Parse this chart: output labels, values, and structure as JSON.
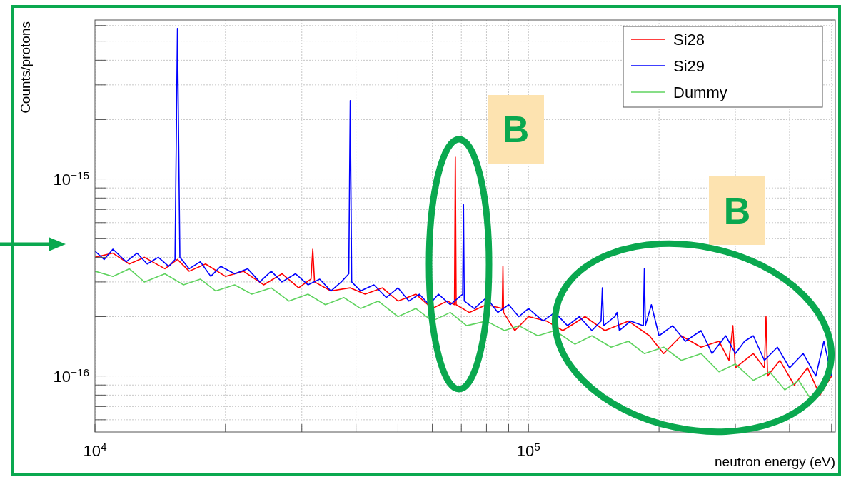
{
  "chart_data": {
    "type": "line",
    "xlabel": "neutron energy (eV)",
    "ylabel": "Counts/protons",
    "log": "xy",
    "grid": true,
    "legend": "top right",
    "xlim": [
      10000,
      510000
    ],
    "ylim": [
      5.2e-17,
      6.4e-15
    ],
    "xticks": [
      {
        "value": 10000,
        "label": "10$^{4}$"
      },
      {
        "value": 20000,
        "label": null
      },
      {
        "value": 30000,
        "label": null
      },
      {
        "value": 40000,
        "label": null
      },
      {
        "value": 50000,
        "label": null
      },
      {
        "value": 60000,
        "label": null
      },
      {
        "value": 70000,
        "label": null
      },
      {
        "value": 80000,
        "label": null
      },
      {
        "value": 90000,
        "label": null
      },
      {
        "value": 100000,
        "label": "10$^{5}$"
      },
      {
        "value": 200000,
        "label": null
      },
      {
        "value": 300000,
        "label": null
      },
      {
        "value": 400000,
        "label": null
      },
      {
        "value": 500000,
        "label": null
      }
    ],
    "yticks": [
      {
        "value": 6e-17,
        "label": null
      },
      {
        "value": 7e-17,
        "label": null
      },
      {
        "value": 8e-17,
        "label": null
      },
      {
        "value": 9e-17,
        "label": null
      },
      {
        "value": 1e-16,
        "label": "10$^{−16}$"
      },
      {
        "value": 2e-16,
        "label": null
      },
      {
        "value": 3e-16,
        "label": null
      },
      {
        "value": 4e-16,
        "label": null
      },
      {
        "value": 5e-16,
        "label": null
      },
      {
        "value": 6e-16,
        "label": null
      },
      {
        "value": 7e-16,
        "label": null
      },
      {
        "value": 8e-16,
        "label": null
      },
      {
        "value": 9e-16,
        "label": null
      },
      {
        "value": 1e-15,
        "label": "10$^{−15}$"
      },
      {
        "value": 2e-15,
        "label": null
      },
      {
        "value": 3e-15,
        "label": null
      },
      {
        "value": 4e-15,
        "label": null
      },
      {
        "value": 5e-15,
        "label": null
      },
      {
        "value": 6e-15,
        "label": null
      }
    ],
    "annotations": [
      "B",
      "B"
    ],
    "series": [
      {
        "name": "Si28",
        "color": "#ff0000",
        "x": [
          10000,
          11000,
          12000,
          13000,
          14500,
          15500,
          16500,
          18000,
          20000,
          22000,
          24500,
          27000,
          29500,
          31500,
          31800,
          32100,
          35000,
          38800,
          42000,
          46000,
          50000,
          55000,
          60000,
          65000,
          67500,
          67800,
          68100,
          73000,
          80000,
          87000,
          87300,
          87600,
          93000,
          100000,
          110000,
          120000,
          135000,
          150000,
          170000,
          190000,
          205000,
          225000,
          250000,
          275000,
          290000,
          296000,
          300000,
          330000,
          350000,
          353000,
          356000,
          380000,
          410000,
          440000,
          470000,
          500000
        ],
        "values": [
          4e-16,
          4.2e-16,
          3.7e-16,
          4e-16,
          3.5e-16,
          3.9e-16,
          3.4e-16,
          3.7e-16,
          3.2e-16,
          3.4e-16,
          2.9e-16,
          3.3e-16,
          2.8e-16,
          3.1e-16,
          4.4e-16,
          3e-16,
          2.7e-16,
          2.8e-16,
          2.6e-16,
          2.8e-16,
          2.4e-16,
          2.6e-16,
          2.2e-16,
          2.4e-16,
          2.3e-16,
          1.29e-15,
          2.3e-16,
          2.1e-16,
          2.3e-16,
          2.2e-16,
          3.6e-16,
          2.1e-16,
          1.7e-16,
          2e-16,
          1.9e-16,
          1.7e-16,
          2e-16,
          1.7e-16,
          1.9e-16,
          1.6e-16,
          1.3e-16,
          1.6e-16,
          1.4e-16,
          1.5e-16,
          1.2e-16,
          1.8e-16,
          1.1e-16,
          1.3e-16,
          1.1e-16,
          2e-16,
          1e-16,
          1.2e-16,
          9e-17,
          1.1e-16,
          8e-17,
          1e-16
        ]
      },
      {
        "name": "Si29",
        "color": "#0000ff",
        "x": [
          10000,
          10500,
          11000,
          11800,
          12500,
          13200,
          14000,
          14800,
          15300,
          15500,
          15700,
          16500,
          17500,
          18500,
          19500,
          21000,
          22500,
          24000,
          25500,
          27000,
          29000,
          31000,
          33000,
          35000,
          37000,
          38500,
          38800,
          39100,
          41000,
          44000,
          47000,
          50000,
          53000,
          56000,
          59000,
          62000,
          66000,
          70500,
          70800,
          71100,
          75000,
          80000,
          85000,
          90000,
          95000,
          100000,
          108000,
          115000,
          123000,
          131000,
          140000,
          147000,
          148000,
          149000,
          158000,
          160000,
          162000,
          172000,
          184000,
          185000,
          186000,
          192000,
          200000,
          215000,
          230000,
          250000,
          265000,
          285000,
          300000,
          315000,
          330000,
          350000,
          375000,
          400000,
          430000,
          460000,
          480000,
          500000
        ],
        "values": [
          4.3e-16,
          3.9e-16,
          4.4e-16,
          3.8e-16,
          4.2e-16,
          3.7e-16,
          4e-16,
          3.6e-16,
          3.9e-16,
          5.8e-15,
          4e-16,
          3.5e-16,
          3.8e-16,
          3.2e-16,
          3.6e-16,
          3.3e-16,
          3.5e-16,
          3e-16,
          3.4e-16,
          3e-16,
          3.3e-16,
          2.9e-16,
          3.1e-16,
          2.7e-16,
          3e-16,
          3.3e-16,
          2.5e-15,
          3e-16,
          2.7e-16,
          2.9e-16,
          2.5e-16,
          2.8e-16,
          2.4e-16,
          2.6e-16,
          2.3e-16,
          2.6e-16,
          2.3e-16,
          2.6e-16,
          7.4e-16,
          2.4e-16,
          2.2e-16,
          2.5e-16,
          2.1e-16,
          2.3e-16,
          2e-16,
          2.2e-16,
          1.9e-16,
          2.1e-16,
          1.8e-16,
          2e-16,
          1.7e-16,
          1.9e-16,
          2.8e-16,
          1.8e-16,
          2e-16,
          2.1e-16,
          1.7e-16,
          1.9e-16,
          1.8e-16,
          3.5e-16,
          1.8e-16,
          2.3e-16,
          1.6e-16,
          1.8e-16,
          1.5e-16,
          1.7e-16,
          1.3e-16,
          1.6e-16,
          1.3e-16,
          1.5e-16,
          1.6e-16,
          1.2e-16,
          1.4e-16,
          1.1e-16,
          1.3e-16,
          1e-16,
          1.5e-16,
          1e-16
        ]
      },
      {
        "name": "Dummy",
        "color": "#5fd35f",
        "x": [
          10000,
          11000,
          12000,
          13000,
          14500,
          16000,
          17500,
          19000,
          21000,
          23000,
          25500,
          28000,
          31000,
          34000,
          37500,
          41000,
          45000,
          50000,
          55000,
          60000,
          66000,
          72000,
          80000,
          88000,
          95000,
          105000,
          115000,
          128000,
          140000,
          155000,
          170000,
          185000,
          205000,
          225000,
          250000,
          275000,
          300000,
          330000,
          360000,
          390000,
          420000,
          450000,
          480000
        ],
        "values": [
          3.4e-16,
          3.2e-16,
          3.5e-16,
          3e-16,
          3.3e-16,
          2.9e-16,
          3.1e-16,
          2.7e-16,
          2.9e-16,
          2.6e-16,
          2.8e-16,
          2.4e-16,
          2.6e-16,
          2.3e-16,
          2.5e-16,
          2.2e-16,
          2.4e-16,
          2e-16,
          2.2e-16,
          1.9e-16,
          2.1e-16,
          1.8e-16,
          1.9e-16,
          1.7e-16,
          1.8e-16,
          1.6e-16,
          1.7e-16,
          1.45e-16,
          1.6e-16,
          1.4e-16,
          1.5e-16,
          1.3e-16,
          1.4e-16,
          1.2e-16,
          1.3e-16,
          1.05e-16,
          1.15e-16,
          9.5e-17,
          1.05e-16,
          8.5e-17,
          9.5e-17,
          7.5e-17,
          8.5e-17
        ]
      }
    ]
  }
}
